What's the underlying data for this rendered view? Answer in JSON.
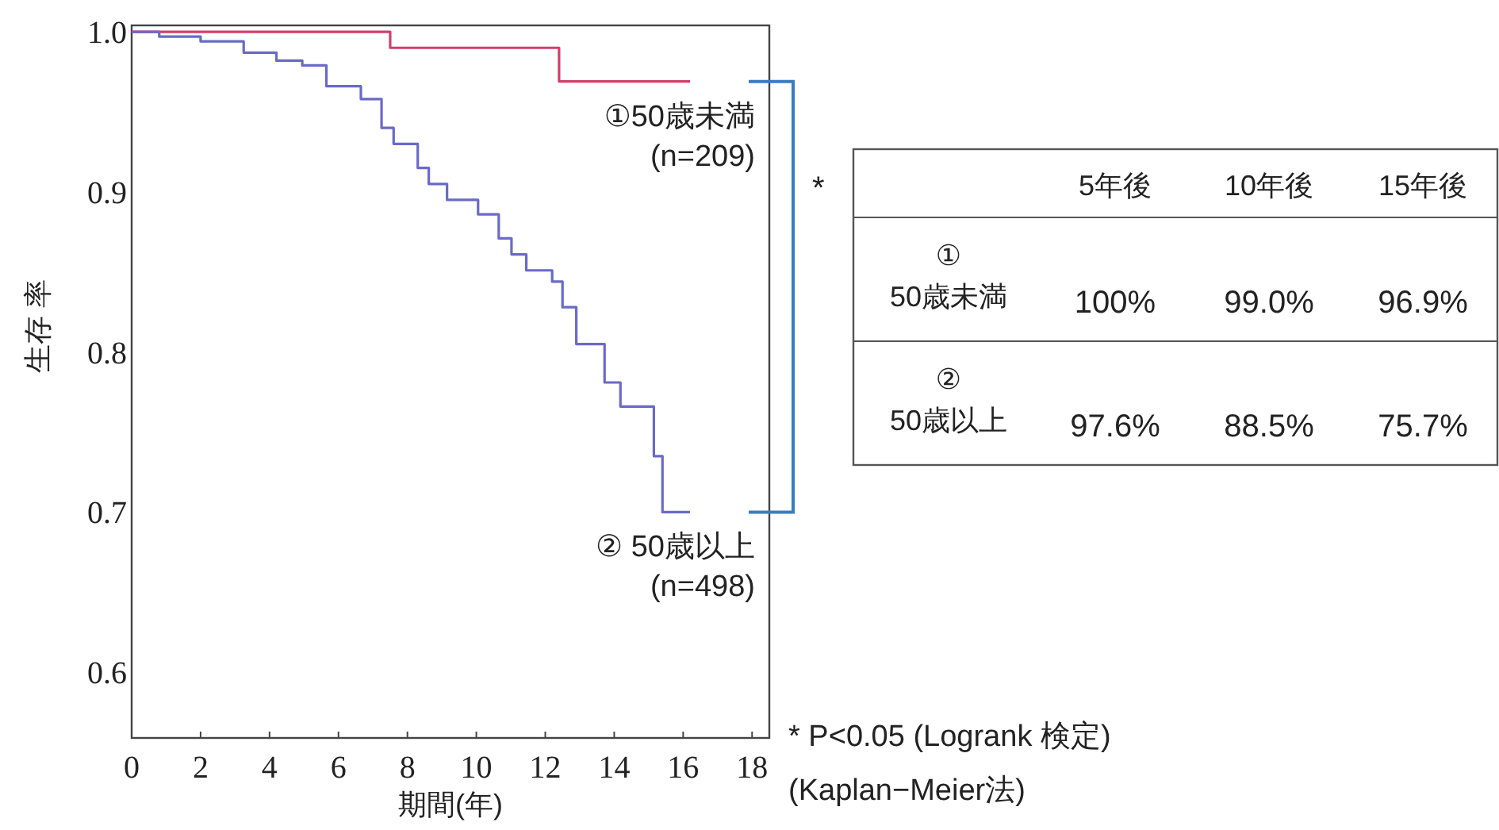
{
  "chart_data": [
    {
      "type": "step",
      "ylabel": "生存 率",
      "xlabel": "期間(年)",
      "xlim": [
        0,
        18.5
      ],
      "ylim": [
        0.559,
        1.004
      ],
      "xticks": [
        0,
        2,
        4,
        6,
        8,
        10,
        12,
        14,
        16,
        18
      ],
      "yticks": [
        {
          "value": 1.0,
          "label": "1.0"
        },
        {
          "value": 0.9,
          "label": "0.9"
        },
        {
          "value": 0.8,
          "label": "0.8"
        },
        {
          "value": 0.7,
          "label": "0.7"
        },
        {
          "value": 0.6,
          "label": "0.6"
        }
      ],
      "series": [
        {
          "name": "①50歳未満\n(n=209)",
          "color": "#d0406a",
          "x": [
            0,
            7.5,
            12.4,
            16.2
          ],
          "values": [
            1.0,
            0.99,
            0.969,
            0.969
          ]
        },
        {
          "name": "② 50歳以上\n(n=498)",
          "color": "#6a6ac8",
          "x": [
            0,
            0.8,
            1.3,
            2.0,
            3.25,
            4.2,
            4.95,
            5.65,
            6.65,
            7.25,
            7.6,
            8.3,
            8.62,
            9.15,
            10.05,
            10.65,
            11.02,
            11.45,
            12.2,
            12.5,
            12.9,
            13.72,
            14.18,
            15.15,
            15.4,
            16.2
          ],
          "values": [
            1.0,
            0.997,
            0.997,
            0.994,
            0.987,
            0.982,
            0.979,
            0.966,
            0.958,
            0.94,
            0.93,
            0.915,
            0.905,
            0.895,
            0.886,
            0.871,
            0.861,
            0.851,
            0.844,
            0.828,
            0.805,
            0.781,
            0.766,
            0.735,
            0.7,
            0.7
          ]
        }
      ],
      "annotations": [
        "* P<0.05 (Logrank 検定)",
        "(Kaplan−Meier法)"
      ]
    },
    {
      "type": "other",
      "annotations": [
        "*"
      ],
      "categories": [
        "5年後",
        "10年後",
        "15年後"
      ],
      "y_categories": [
        "①\n50歳未満",
        "②\n50歳以上"
      ],
      "cell_labels": [
        [
          "100%",
          "99.0%",
          "96.9%"
        ],
        [
          "97.6%",
          "88.5%",
          "75.7%"
        ]
      ]
    }
  ]
}
